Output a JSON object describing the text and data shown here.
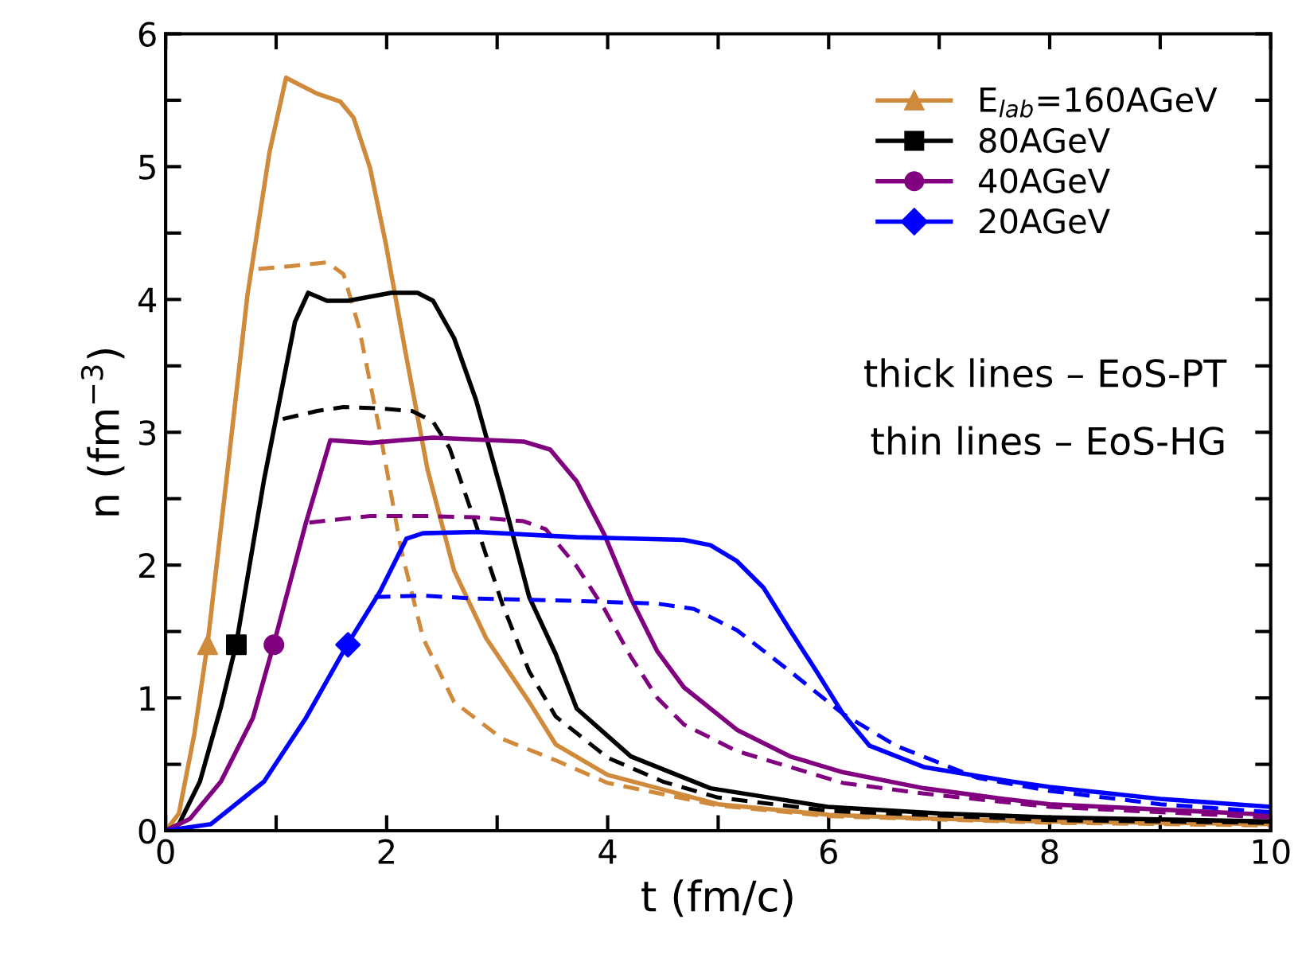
{
  "chart_data": {
    "type": "line",
    "xlabel": "t (fm/c)",
    "ylabel": "n (fm$^{−3}$)",
    "xlim": [
      0,
      10
    ],
    "ylim": [
      0,
      6
    ],
    "xticks": [
      0,
      {
        "value": 1,
        "label": null
      },
      2,
      {
        "value": 3,
        "label": null
      },
      4,
      {
        "value": 5,
        "label": null
      },
      6,
      {
        "value": 7,
        "label": null
      },
      8,
      {
        "value": 9,
        "label": null
      },
      10
    ],
    "yticks": [
      0,
      {
        "value": 0.5,
        "label": null
      },
      1,
      {
        "value": 1.5,
        "label": null
      },
      2,
      {
        "value": 2.5,
        "label": null
      },
      3,
      {
        "value": 3.5,
        "label": null
      },
      4,
      {
        "value": 4.5,
        "label": null
      },
      5,
      {
        "value": 5.5,
        "label": null
      },
      6
    ],
    "grid": false,
    "legend": "top right",
    "annotations": [
      "thick lines – EoS-PT",
      "thin lines – EoS-HG"
    ],
    "series": [
      {
        "type": "line",
        "color": "#d08a3c",
        "line_style": "solid",
        "x": [
          0,
          0.12,
          0.26,
          0.38,
          0.55,
          0.74,
          0.94,
          1.09,
          1.18,
          1.37,
          1.58,
          1.7,
          1.85,
          1.99,
          2.18,
          2.37,
          2.61,
          2.9,
          3.29,
          3.53,
          4,
          5,
          6,
          7,
          8,
          10
        ],
        "values": [
          0,
          0.13,
          0.73,
          1.41,
          2.64,
          4.03,
          5.11,
          5.67,
          5.63,
          5.55,
          5.49,
          5.37,
          4.99,
          4.43,
          3.56,
          2.72,
          1.96,
          1.45,
          0.97,
          0.65,
          0.42,
          0.2,
          0.12,
          0.09,
          0.07,
          0.05
        ]
      },
      {
        "type": "line",
        "color": "#d08a3c",
        "line_style": "dashed",
        "x": [
          0.84,
          1.13,
          1.46,
          1.61,
          1.75,
          1.94,
          2.13,
          2.33,
          2.61,
          3.05,
          3.53,
          4,
          5,
          6,
          8,
          10
        ],
        "values": [
          4.23,
          4.25,
          4.28,
          4.19,
          3.79,
          3.0,
          2.12,
          1.45,
          0.97,
          0.69,
          0.53,
          0.36,
          0.19,
          0.11,
          0.06,
          0.04
        ]
      },
      {
        "type": "line",
        "color": "#000000",
        "line_style": "solid",
        "x": [
          0,
          0.12,
          0.31,
          0.5,
          0.64,
          0.89,
          1.17,
          1.29,
          1.46,
          1.65,
          2.04,
          2.28,
          2.42,
          2.61,
          2.81,
          3.05,
          3.29,
          3.53,
          3.72,
          4.21,
          4.93,
          5.99,
          7,
          8,
          10
        ],
        "values": [
          0,
          0.05,
          0.37,
          0.93,
          1.41,
          2.64,
          3.83,
          4.05,
          3.99,
          3.99,
          4.05,
          4.05,
          3.99,
          3.71,
          3.24,
          2.52,
          1.76,
          1.33,
          0.92,
          0.56,
          0.32,
          0.18,
          0.13,
          0.1,
          0.07
        ]
      },
      {
        "type": "line",
        "color": "#000000",
        "line_style": "dashed",
        "x": [
          1.06,
          1.37,
          1.61,
          1.94,
          2.23,
          2.42,
          2.57,
          2.81,
          3.05,
          3.29,
          3.53,
          4,
          4.5,
          5,
          6,
          8,
          10
        ],
        "values": [
          3.1,
          3.16,
          3.19,
          3.18,
          3.16,
          3.08,
          2.88,
          2.3,
          1.7,
          1.2,
          0.86,
          0.55,
          0.37,
          0.25,
          0.15,
          0.08,
          0.06
        ]
      },
      {
        "type": "line",
        "color": "#800080",
        "line_style": "solid",
        "x": [
          0,
          0.22,
          0.5,
          0.79,
          0.98,
          1.27,
          1.49,
          1.85,
          2.42,
          3.24,
          3.48,
          3.72,
          3.97,
          4.21,
          4.45,
          4.69,
          5.17,
          5.65,
          6.13,
          6.86,
          7.58,
          8,
          10
        ],
        "values": [
          0,
          0.09,
          0.37,
          0.85,
          1.41,
          2.32,
          2.94,
          2.92,
          2.96,
          2.93,
          2.87,
          2.63,
          2.23,
          1.75,
          1.35,
          1.08,
          0.76,
          0.56,
          0.44,
          0.32,
          0.24,
          0.2,
          0.12
        ]
      },
      {
        "type": "line",
        "color": "#800080",
        "line_style": "dashed",
        "x": [
          1.3,
          1.85,
          2.33,
          2.81,
          3.24,
          3.44,
          3.72,
          3.97,
          4.21,
          4.45,
          4.69,
          5.17,
          5.65,
          6.13,
          6.86,
          8,
          10
        ],
        "values": [
          2.32,
          2.37,
          2.37,
          2.36,
          2.33,
          2.27,
          1.99,
          1.67,
          1.31,
          1.0,
          0.8,
          0.6,
          0.48,
          0.36,
          0.28,
          0.18,
          0.1
        ]
      },
      {
        "type": "line",
        "color": "#0000ff",
        "line_style": "solid",
        "x": [
          0,
          0.41,
          0.89,
          1.27,
          1.65,
          1.94,
          2.18,
          2.33,
          2.81,
          3.72,
          4.69,
          4.93,
          5.17,
          5.41,
          5.65,
          5.89,
          6.13,
          6.37,
          6.86,
          7.58,
          8,
          9,
          10
        ],
        "values": [
          0,
          0.05,
          0.37,
          0.85,
          1.41,
          1.8,
          2.2,
          2.24,
          2.25,
          2.21,
          2.19,
          2.15,
          2.03,
          1.83,
          1.51,
          1.2,
          0.88,
          0.64,
          0.48,
          0.38,
          0.33,
          0.24,
          0.18
        ]
      },
      {
        "type": "line",
        "color": "#0000ff",
        "line_style": "dashed",
        "x": [
          1.89,
          2.33,
          2.76,
          3.72,
          4.45,
          4.78,
          5.17,
          5.65,
          6.13,
          6.61,
          7.34,
          8,
          9,
          10
        ],
        "values": [
          1.76,
          1.77,
          1.75,
          1.73,
          1.71,
          1.67,
          1.51,
          1.2,
          0.88,
          0.64,
          0.4,
          0.3,
          0.2,
          0.14
        ]
      },
      {
        "type": "scatter",
        "name": "E$_{lab}$=160AGeV",
        "color": "#d08a3c",
        "marker": "triangle",
        "x": [
          0.38
        ],
        "values": [
          1.4
        ]
      },
      {
        "type": "scatter",
        "name": "80AGeV",
        "color": "#000000",
        "marker": "square",
        "x": [
          0.64
        ],
        "values": [
          1.4
        ]
      },
      {
        "type": "scatter",
        "name": "40AGeV",
        "color": "#800080",
        "marker": "circle",
        "x": [
          0.98
        ],
        "values": [
          1.4
        ]
      },
      {
        "type": "scatter",
        "name": "20AGeV",
        "color": "#0000ff",
        "marker": "diamond",
        "x": [
          1.65
        ],
        "values": [
          1.4
        ]
      }
    ]
  }
}
